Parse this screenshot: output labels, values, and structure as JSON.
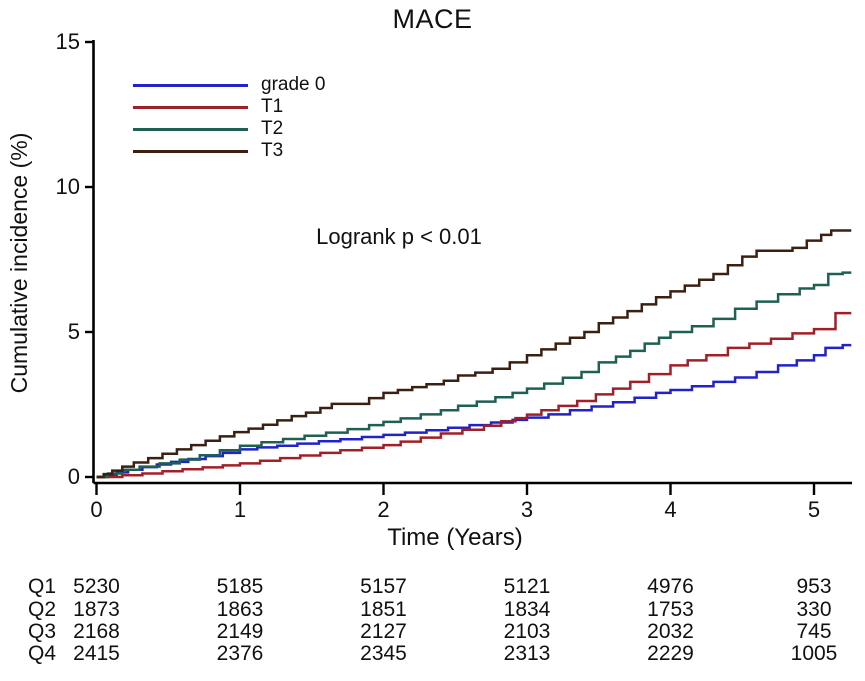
{
  "title": "MACE",
  "annotation": "Logrank p < 0.01",
  "y_axis": {
    "label": "Cumulative incidence (%)",
    "ticks": [
      0,
      5,
      10,
      15
    ],
    "max": 15
  },
  "x_axis": {
    "label": "Time (Years)",
    "ticks": [
      0,
      1,
      2,
      3,
      4,
      5
    ]
  },
  "colors": {
    "grade0": "#2222cc",
    "t1": "#a02028",
    "t2": "#1e6054",
    "t3": "#3b2012",
    "axis": "#000000"
  },
  "legend": [
    {
      "label": "grade 0",
      "color": "#2222cc"
    },
    {
      "label": "T1",
      "color": "#a02028"
    },
    {
      "label": "T2",
      "color": "#1e6054"
    },
    {
      "label": "T3",
      "color": "#3b2012"
    }
  ],
  "chart_data": {
    "type": "line",
    "subtype": "step-cumulative-incidence",
    "title": "MACE",
    "xlabel": "Time (Years)",
    "ylabel": "Cumulative incidence (%)",
    "xlim": [
      0,
      5.3
    ],
    "ylim": [
      0,
      15
    ],
    "grid": false,
    "legend_position": "upper-left-inside",
    "annotation": "Logrank p < 0.01",
    "series": [
      {
        "name": "grade 0",
        "color": "#2222cc",
        "points": [
          [
            0,
            0
          ],
          [
            0.06,
            0.08
          ],
          [
            0.14,
            0.16
          ],
          [
            0.22,
            0.25
          ],
          [
            0.32,
            0.34
          ],
          [
            0.42,
            0.43
          ],
          [
            0.52,
            0.52
          ],
          [
            0.64,
            0.62
          ],
          [
            0.76,
            0.72
          ],
          [
            0.88,
            0.83
          ],
          [
            1.0,
            0.95
          ],
          [
            1.12,
            1.02
          ],
          [
            1.26,
            1.08
          ],
          [
            1.4,
            1.15
          ],
          [
            1.55,
            1.23
          ],
          [
            1.7,
            1.3
          ],
          [
            1.85,
            1.38
          ],
          [
            2.0,
            1.45
          ],
          [
            2.15,
            1.53
          ],
          [
            2.3,
            1.61
          ],
          [
            2.45,
            1.7
          ],
          [
            2.6,
            1.79
          ],
          [
            2.75,
            1.88
          ],
          [
            2.9,
            1.97
          ],
          [
            3.0,
            2.05
          ],
          [
            3.15,
            2.16
          ],
          [
            3.3,
            2.3
          ],
          [
            3.45,
            2.43
          ],
          [
            3.6,
            2.58
          ],
          [
            3.75,
            2.73
          ],
          [
            3.9,
            2.9
          ],
          [
            4.0,
            3.0
          ],
          [
            4.15,
            3.13
          ],
          [
            4.3,
            3.28
          ],
          [
            4.45,
            3.43
          ],
          [
            4.6,
            3.62
          ],
          [
            4.75,
            3.85
          ],
          [
            4.88,
            4.02
          ],
          [
            5.0,
            4.2
          ],
          [
            5.08,
            4.45
          ],
          [
            5.2,
            4.55
          ]
        ]
      },
      {
        "name": "T1",
        "color": "#a02028",
        "points": [
          [
            0,
            0
          ],
          [
            0.18,
            0.06
          ],
          [
            0.32,
            0.12
          ],
          [
            0.46,
            0.2
          ],
          [
            0.6,
            0.27
          ],
          [
            0.74,
            0.33
          ],
          [
            0.88,
            0.4
          ],
          [
            1.0,
            0.47
          ],
          [
            1.14,
            0.56
          ],
          [
            1.28,
            0.65
          ],
          [
            1.42,
            0.74
          ],
          [
            1.56,
            0.83
          ],
          [
            1.7,
            0.92
          ],
          [
            1.85,
            1.01
          ],
          [
            2.0,
            1.1
          ],
          [
            2.12,
            1.22
          ],
          [
            2.26,
            1.36
          ],
          [
            2.4,
            1.5
          ],
          [
            2.55,
            1.63
          ],
          [
            2.7,
            1.77
          ],
          [
            2.82,
            1.92
          ],
          [
            2.92,
            2.03
          ],
          [
            3.0,
            2.15
          ],
          [
            3.1,
            2.3
          ],
          [
            3.22,
            2.45
          ],
          [
            3.35,
            2.62
          ],
          [
            3.48,
            2.85
          ],
          [
            3.6,
            3.05
          ],
          [
            3.72,
            3.28
          ],
          [
            3.85,
            3.55
          ],
          [
            4.0,
            3.85
          ],
          [
            4.12,
            4.02
          ],
          [
            4.25,
            4.2
          ],
          [
            4.4,
            4.45
          ],
          [
            4.55,
            4.6
          ],
          [
            4.7,
            4.77
          ],
          [
            4.85,
            4.95
          ],
          [
            5.0,
            5.1
          ],
          [
            5.15,
            5.65
          ]
        ]
      },
      {
        "name": "T2",
        "color": "#1e6054",
        "points": [
          [
            0,
            0
          ],
          [
            0.08,
            0.12
          ],
          [
            0.18,
            0.25
          ],
          [
            0.3,
            0.36
          ],
          [
            0.44,
            0.47
          ],
          [
            0.58,
            0.6
          ],
          [
            0.72,
            0.75
          ],
          [
            0.86,
            0.92
          ],
          [
            1.0,
            1.08
          ],
          [
            1.15,
            1.2
          ],
          [
            1.3,
            1.31
          ],
          [
            1.45,
            1.42
          ],
          [
            1.6,
            1.53
          ],
          [
            1.75,
            1.65
          ],
          [
            1.9,
            1.79
          ],
          [
            2.0,
            1.9
          ],
          [
            2.12,
            2.02
          ],
          [
            2.26,
            2.16
          ],
          [
            2.4,
            2.3
          ],
          [
            2.52,
            2.46
          ],
          [
            2.65,
            2.6
          ],
          [
            2.78,
            2.75
          ],
          [
            2.9,
            2.9
          ],
          [
            3.0,
            3.05
          ],
          [
            3.12,
            3.22
          ],
          [
            3.25,
            3.42
          ],
          [
            3.38,
            3.62
          ],
          [
            3.5,
            3.95
          ],
          [
            3.62,
            4.15
          ],
          [
            3.72,
            4.35
          ],
          [
            3.82,
            4.6
          ],
          [
            3.92,
            4.8
          ],
          [
            4.0,
            5.0
          ],
          [
            4.15,
            5.2
          ],
          [
            4.3,
            5.45
          ],
          [
            4.45,
            5.8
          ],
          [
            4.6,
            6.05
          ],
          [
            4.75,
            6.3
          ],
          [
            4.9,
            6.5
          ],
          [
            5.0,
            6.62
          ],
          [
            5.1,
            7.0
          ],
          [
            5.2,
            7.05
          ]
        ]
      },
      {
        "name": "T3",
        "color": "#3b2012",
        "points": [
          [
            0,
            0
          ],
          [
            0.05,
            0.1
          ],
          [
            0.11,
            0.22
          ],
          [
            0.18,
            0.36
          ],
          [
            0.26,
            0.5
          ],
          [
            0.36,
            0.65
          ],
          [
            0.46,
            0.8
          ],
          [
            0.56,
            0.95
          ],
          [
            0.66,
            1.1
          ],
          [
            0.76,
            1.25
          ],
          [
            0.86,
            1.4
          ],
          [
            0.96,
            1.55
          ],
          [
            1.06,
            1.67
          ],
          [
            1.16,
            1.8
          ],
          [
            1.26,
            1.95
          ],
          [
            1.36,
            2.1
          ],
          [
            1.46,
            2.22
          ],
          [
            1.56,
            2.38
          ],
          [
            1.64,
            2.52
          ],
          [
            1.9,
            2.72
          ],
          [
            2.0,
            2.9
          ],
          [
            2.1,
            3.0
          ],
          [
            2.2,
            3.1
          ],
          [
            2.3,
            3.2
          ],
          [
            2.42,
            3.32
          ],
          [
            2.52,
            3.5
          ],
          [
            2.64,
            3.6
          ],
          [
            2.76,
            3.73
          ],
          [
            2.88,
            3.95
          ],
          [
            3.0,
            4.2
          ],
          [
            3.1,
            4.4
          ],
          [
            3.2,
            4.6
          ],
          [
            3.3,
            4.8
          ],
          [
            3.4,
            5.0
          ],
          [
            3.5,
            5.3
          ],
          [
            3.6,
            5.5
          ],
          [
            3.7,
            5.72
          ],
          [
            3.8,
            5.95
          ],
          [
            3.9,
            6.2
          ],
          [
            4.0,
            6.4
          ],
          [
            4.1,
            6.6
          ],
          [
            4.2,
            6.8
          ],
          [
            4.3,
            7.0
          ],
          [
            4.4,
            7.3
          ],
          [
            4.5,
            7.6
          ],
          [
            4.6,
            7.8
          ],
          [
            4.85,
            7.9
          ],
          [
            4.95,
            8.15
          ],
          [
            5.05,
            8.35
          ],
          [
            5.12,
            8.5
          ]
        ]
      }
    ]
  },
  "risk_table": {
    "times": [
      0,
      1,
      2,
      3,
      4,
      5
    ],
    "rows": [
      {
        "label": "Q1",
        "values": [
          "5230",
          "5185",
          "5157",
          "5121",
          "4976",
          "953"
        ]
      },
      {
        "label": "Q2",
        "values": [
          "1873",
          "1863",
          "1851",
          "1834",
          "1753",
          "330"
        ]
      },
      {
        "label": "Q3",
        "values": [
          "2168",
          "2149",
          "2127",
          "2103",
          "2032",
          "745"
        ]
      },
      {
        "label": "Q4",
        "values": [
          "2415",
          "2376",
          "2345",
          "2313",
          "2229",
          "1005"
        ]
      }
    ]
  }
}
